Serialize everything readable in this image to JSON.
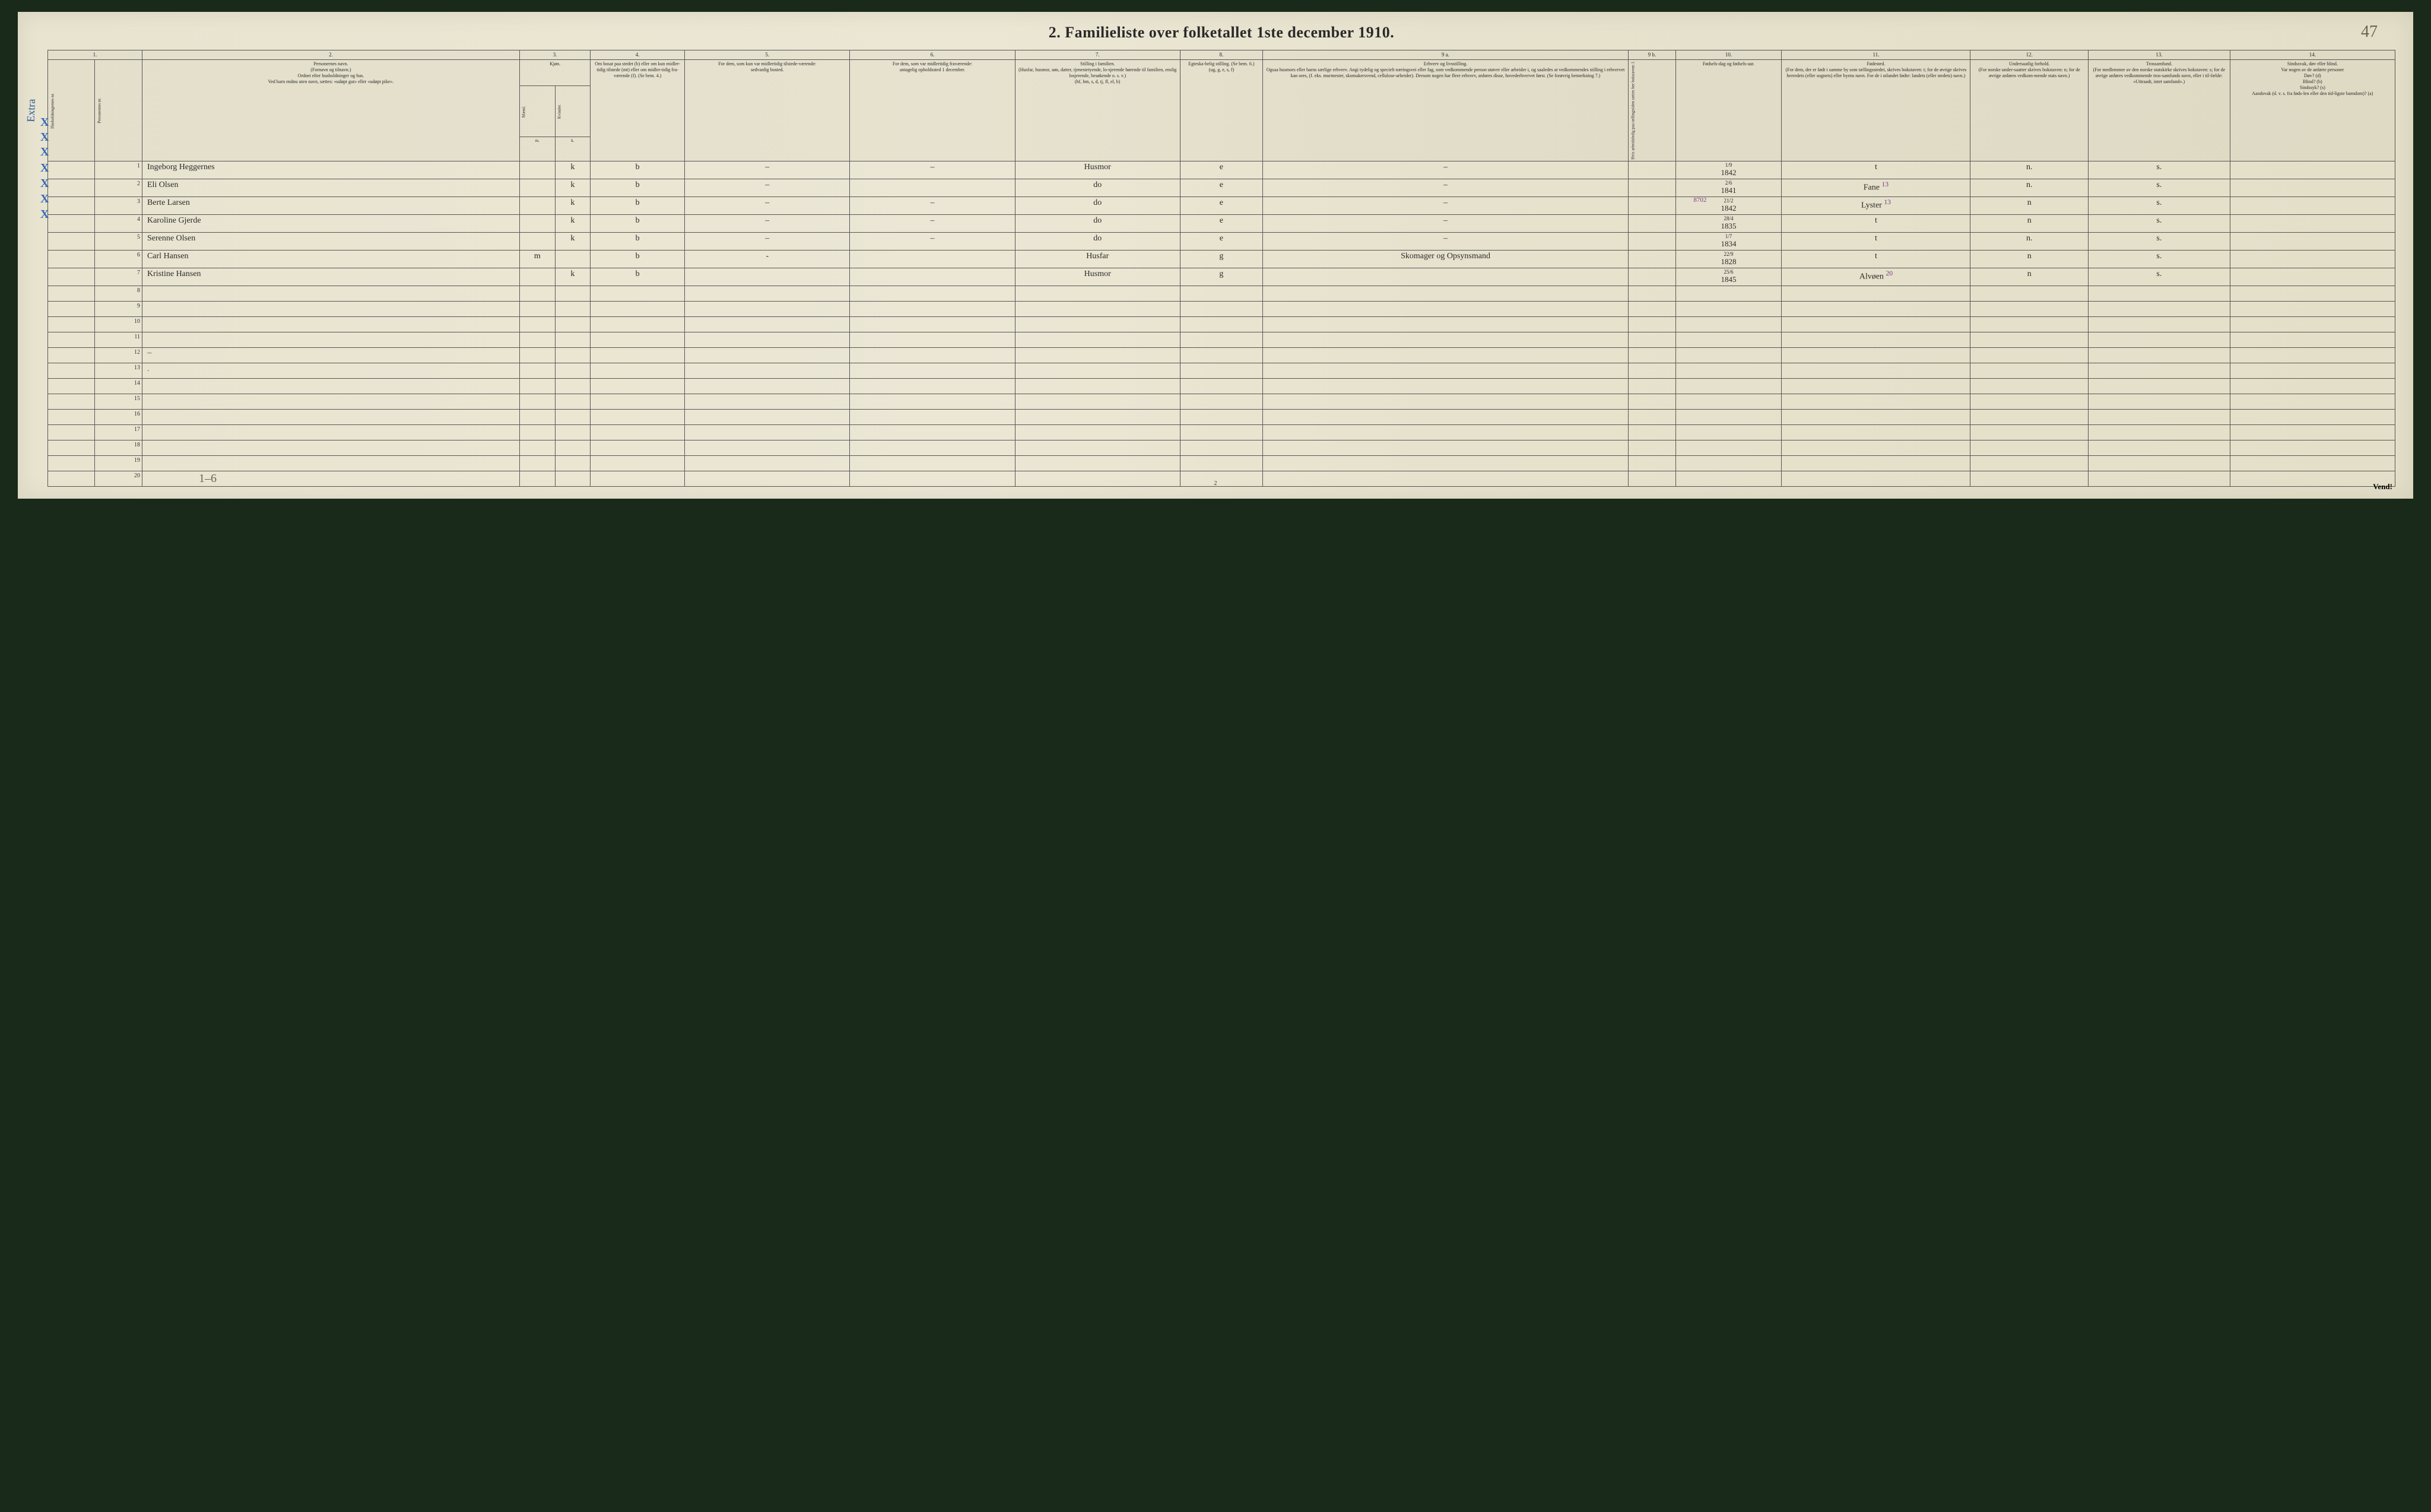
{
  "title": "2.  Familieliste over folketallet 1ste december 1910.",
  "pencil_top_right": "47",
  "side_marker": "Extra",
  "footer_pencil": "1–6",
  "footer_page": "2",
  "footer_turn": "Vend!",
  "over_text": "8702",
  "columns": {
    "top": [
      "1.",
      "2.",
      "3.",
      "4.",
      "5.",
      "6.",
      "7.",
      "8.",
      "9 a.",
      "9 b.",
      "10.",
      "11.",
      "12.",
      "13.",
      "14."
    ],
    "h1_hush": "Husholdningernes nr.",
    "h1_pers": "Personernes nr.",
    "h2": "Personernes navn.\n(Fornavn og tilnavn.)\nOrdnet efter husholdninger og hus.\nVed barn endnu uten navn, sættes: «udøpt gut» eller «udøpt pike».",
    "h3_kjon": "Kjøn.",
    "h3_m": "Mænd.",
    "h3_k": "Kvinder.",
    "h3_mk_m": "m.",
    "h3_mk_k": "k.",
    "h4": "Om bosat paa stedet (b) eller om kun midler-tidig tilstede (mt) eller om midler-tidig fra-værende (f). (Se bem. 4.)",
    "h5": "For dem, som kun var midlertidig tilstede-værende:\nsedvanlig bosted.",
    "h6": "For dem, som var midlertidig fraværende:\nantagelig opholdssted 1 december.",
    "h7": "Stilling i familien.\n(Husfar, husmor, søn, datter, tjenestetyende, lo-sjerende hørende til familien, enslig losjerende, besøkende o. s. v.)\n(hf, hm, s, d, tj, fl, el, b)",
    "h8": "Egteska-belig stilling. (Se bem. 6.)\n(ug, g, e, s, f)",
    "h9a": "Erhverv og livsstilling.\nOgsaa husmors eller barns særlige erhverv. Angi tydelig og specielt næringsvei eller fag, som vedkommende person utøver eller arbeider i, og saaledes at vedkommendes stilling i erhvervet kan sees, (f. eks. murmester, skomakersvend, cellulose-arbeider). Dersom nogen har flere erhverv, anføres disse, hovederhvervet først. (Se forøvrig bemerkning 7.)",
    "h9b": "Hvis arbeidsledig paa tællingstiden sættes her bokstaven: l.",
    "h10": "Fødsels-dag og fødsels-aar.",
    "h11": "Fødested.\n(For dem, der er født i samme by som tællingsstedet, skrives bokstaven: t; for de øvrige skrives herredets (eller sognets) eller byens navn. For de i utlandet fødte: landets (eller stedets) navn.)",
    "h12": "Undersaatlig forhold.\n(For norske under-saatter skrives bokstaven: n; for de øvrige anføres vedkom-mende stats navn.)",
    "h13": "Trossamfund.\n(For medlemmer av den norske statskirke skrives bokstaven: s; for de øvrige anføres vedkommende tros-samfunds navn, eller i til-fælde: «Uttraadt, intet samfund».)",
    "h14": "Sindssvak, døv eller blind.\nVar nogen av de anførte personer\nDøv? (d)\nBlind? (b)\nSindssyk? (s)\nAandsvak (d. v. s. fra føds-len eller den tid-ligste barndom)? (a)"
  },
  "rows": [
    {
      "n": "1",
      "name": "Ingeborg Heggernes",
      "k": "k",
      "bos": "b",
      "c5": "–",
      "c6": "–",
      "stil": "Husmor",
      "egte": "e",
      "erhv": "–",
      "dob_top": "1/9",
      "dob": "1842",
      "fod": "t",
      "und": "n.",
      "tros": "s."
    },
    {
      "n": "2",
      "name": "Eli Olsen",
      "k": "k",
      "bos": "b",
      "c5": "–",
      "c6": "",
      "stil": "do",
      "egte": "e",
      "erhv": "–",
      "dob_top": "2/6",
      "dob": "1841",
      "fod": "Fane",
      "fod_sup": "13",
      "und": "n.",
      "tros": "s."
    },
    {
      "n": "3",
      "name": "Berte Larsen",
      "k": "k",
      "bos": "b",
      "c5": "–",
      "c6": "–",
      "stil": "do",
      "egte": "e",
      "erhv": "–",
      "dob_top": "21/2",
      "dob": "1842",
      "fod": "Lyster",
      "fod_sup": "13",
      "und": "n",
      "tros": "s."
    },
    {
      "n": "4",
      "name": "Karoline Gjerde",
      "k": "k",
      "bos": "b",
      "c5": "–",
      "c6": "–",
      "stil": "do",
      "egte": "e",
      "erhv": "–",
      "dob_top": "28/4",
      "dob": "1835",
      "fod": "t",
      "und": "n",
      "tros": "s."
    },
    {
      "n": "5",
      "name": "Serenne Olsen",
      "k": "k",
      "bos": "b",
      "c5": "–",
      "c6": "–",
      "stil": "do",
      "egte": "e",
      "erhv": "–",
      "dob_top": "1/7",
      "dob": "1834",
      "fod": "t",
      "und": "n.",
      "tros": "s."
    },
    {
      "n": "6",
      "name": "Carl Hansen",
      "m": "m",
      "bos": "b",
      "c5": "-",
      "c6": "",
      "stil": "Husfar",
      "egte": "g",
      "erhv": "Skomager og Opsynsmand",
      "dob_top": "22/9",
      "dob": "1828",
      "fod": "t",
      "und": "n",
      "tros": "s."
    },
    {
      "n": "7",
      "name": "Kristine Hansen",
      "k": "k",
      "bos": "b",
      "c5": "",
      "c6": "",
      "stil": "Husmor",
      "egte": "g",
      "erhv": "",
      "dob_top": "25/6",
      "dob": "1845",
      "fod": "Alvøen",
      "fod_sup": "20",
      "und": "n",
      "tros": "s."
    }
  ],
  "empty_rows": [
    "8",
    "9",
    "10",
    "11",
    "12",
    "13",
    "14",
    "15",
    "16",
    "17",
    "18",
    "19",
    "20"
  ],
  "stray_marks": {
    "row12": "~",
    "row13": "."
  },
  "col_widths_pct": [
    2,
    2,
    16,
    1.5,
    1.5,
    4,
    7,
    7,
    7,
    3.5,
    15.5,
    2,
    4.5,
    8,
    5,
    6,
    7
  ],
  "colors": {
    "paper": "#e8e4d0",
    "ink": "#2a2a2a",
    "pencil": "#6a6555",
    "blue_pencil": "#3a6ab8",
    "purple_ink": "#7a3a8a",
    "border": "#555555"
  }
}
